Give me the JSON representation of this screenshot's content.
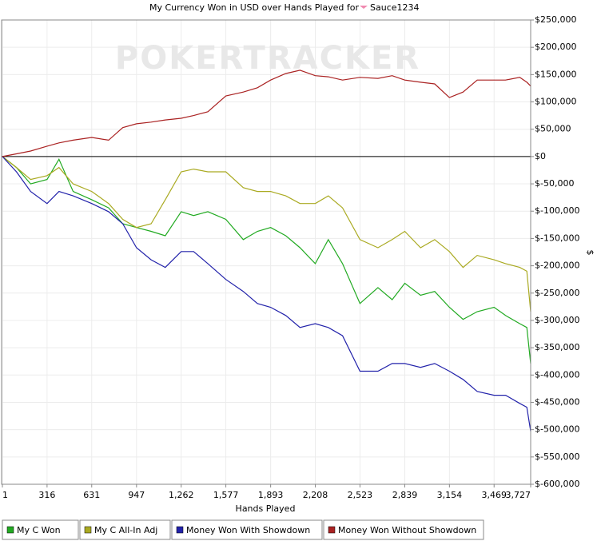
{
  "chart_data": {
    "type": "line",
    "title": "My Currency Won in USD over Hands Played for",
    "player": "Sauce1234",
    "watermark": "POKERTRACKER",
    "xlabel": "Hands Played",
    "ylabel": "$",
    "x": [
      1,
      100,
      200,
      316,
      400,
      500,
      631,
      750,
      850,
      947,
      1050,
      1150,
      1262,
      1350,
      1450,
      1577,
      1700,
      1800,
      1893,
      2000,
      2100,
      2208,
      2300,
      2400,
      2523,
      2650,
      2750,
      2839,
      2950,
      3050,
      3154,
      3250,
      3350,
      3469,
      3550,
      3650,
      3700,
      3727
    ],
    "series": [
      {
        "name": "My C Won",
        "color": "#22aa22",
        "values": [
          0,
          -20000,
          -50000,
          -42000,
          -5000,
          -64000,
          -79000,
          -94000,
          -123000,
          -130000,
          -137000,
          -145000,
          -101000,
          -108000,
          -101000,
          -115000,
          -152000,
          -137000,
          -130000,
          -145000,
          -167000,
          -196000,
          -152000,
          -196000,
          -269000,
          -240000,
          -262000,
          -232000,
          -254000,
          -247000,
          -276000,
          -298000,
          -284000,
          -276000,
          -291000,
          -306000,
          -313000,
          -379000
        ]
      },
      {
        "name": "My C All-In Adj",
        "color": "#aaaa22",
        "values": [
          0,
          -20000,
          -42000,
          -35000,
          -20000,
          -50000,
          -64000,
          -86000,
          -115000,
          -130000,
          -123000,
          -79000,
          -28000,
          -23000,
          -28000,
          -28000,
          -57000,
          -64000,
          -64000,
          -72000,
          -86000,
          -86000,
          -72000,
          -94000,
          -152000,
          -167000,
          -152000,
          -137000,
          -167000,
          -152000,
          -174000,
          -203000,
          -181000,
          -189000,
          -196000,
          -203000,
          -210000,
          -284000
        ]
      },
      {
        "name": "Money Won With Showdown",
        "color": "#2222aa",
        "values": [
          0,
          -28000,
          -64000,
          -86000,
          -64000,
          -72000,
          -86000,
          -101000,
          -123000,
          -167000,
          -189000,
          -203000,
          -174000,
          -174000,
          -196000,
          -225000,
          -247000,
          -269000,
          -276000,
          -291000,
          -313000,
          -306000,
          -313000,
          -328000,
          -393000,
          -393000,
          -379000,
          -379000,
          -386000,
          -379000,
          -393000,
          -408000,
          -430000,
          -437000,
          -437000,
          -452000,
          -459000,
          -503000
        ]
      },
      {
        "name": "Money Won Without Showdown",
        "color": "#aa2222",
        "values": [
          0,
          5000,
          10000,
          19000,
          25000,
          30000,
          35000,
          30000,
          53000,
          60000,
          63000,
          67000,
          70000,
          75000,
          82000,
          111000,
          118000,
          126000,
          140000,
          152000,
          158000,
          148000,
          146000,
          140000,
          145000,
          143000,
          148000,
          140000,
          136000,
          133000,
          108000,
          118000,
          140000,
          140000,
          140000,
          145000,
          136000,
          129000
        ]
      }
    ],
    "xlim": [
      1,
      3727
    ],
    "xticks": [
      1,
      316,
      631,
      947,
      {
        "value": 1262,
        "label": "1,262"
      },
      {
        "value": 1577,
        "label": "1,577"
      },
      {
        "value": 1893,
        "label": "1,893"
      },
      {
        "value": 2208,
        "label": "2,208"
      },
      {
        "value": 2523,
        "label": "2,523"
      },
      {
        "value": 2839,
        "label": "2,839"
      },
      {
        "value": 3154,
        "label": "3,154"
      },
      {
        "value": 3469,
        "label": "3,469"
      },
      {
        "value": 3727,
        "label": "3,727"
      }
    ],
    "ylim": [
      -600000,
      250000
    ],
    "yticks": [
      {
        "value": 250000,
        "label": "$250,000"
      },
      {
        "value": 200000,
        "label": "$200,000"
      },
      {
        "value": 150000,
        "label": "$150,000"
      },
      {
        "value": 100000,
        "label": "$100,000"
      },
      {
        "value": 50000,
        "label": "$50,000"
      },
      {
        "value": 0,
        "label": "$0"
      },
      {
        "value": -50000,
        "label": "$-50,000"
      },
      {
        "value": -100000,
        "label": "$-100,000"
      },
      {
        "value": -150000,
        "label": "$-150,000"
      },
      {
        "value": -200000,
        "label": "$-200,000"
      },
      {
        "value": -250000,
        "label": "$-250,000"
      },
      {
        "value": -300000,
        "label": "$-300,000"
      },
      {
        "value": -350000,
        "label": "$-350,000"
      },
      {
        "value": -400000,
        "label": "$-400,000"
      },
      {
        "value": -450000,
        "label": "$-450,000"
      },
      {
        "value": -500000,
        "label": "$-500,000"
      },
      {
        "value": -550000,
        "label": "$-550,000"
      },
      {
        "value": -600000,
        "label": "$-600,000"
      }
    ],
    "grid": true,
    "legend": "bottom"
  }
}
